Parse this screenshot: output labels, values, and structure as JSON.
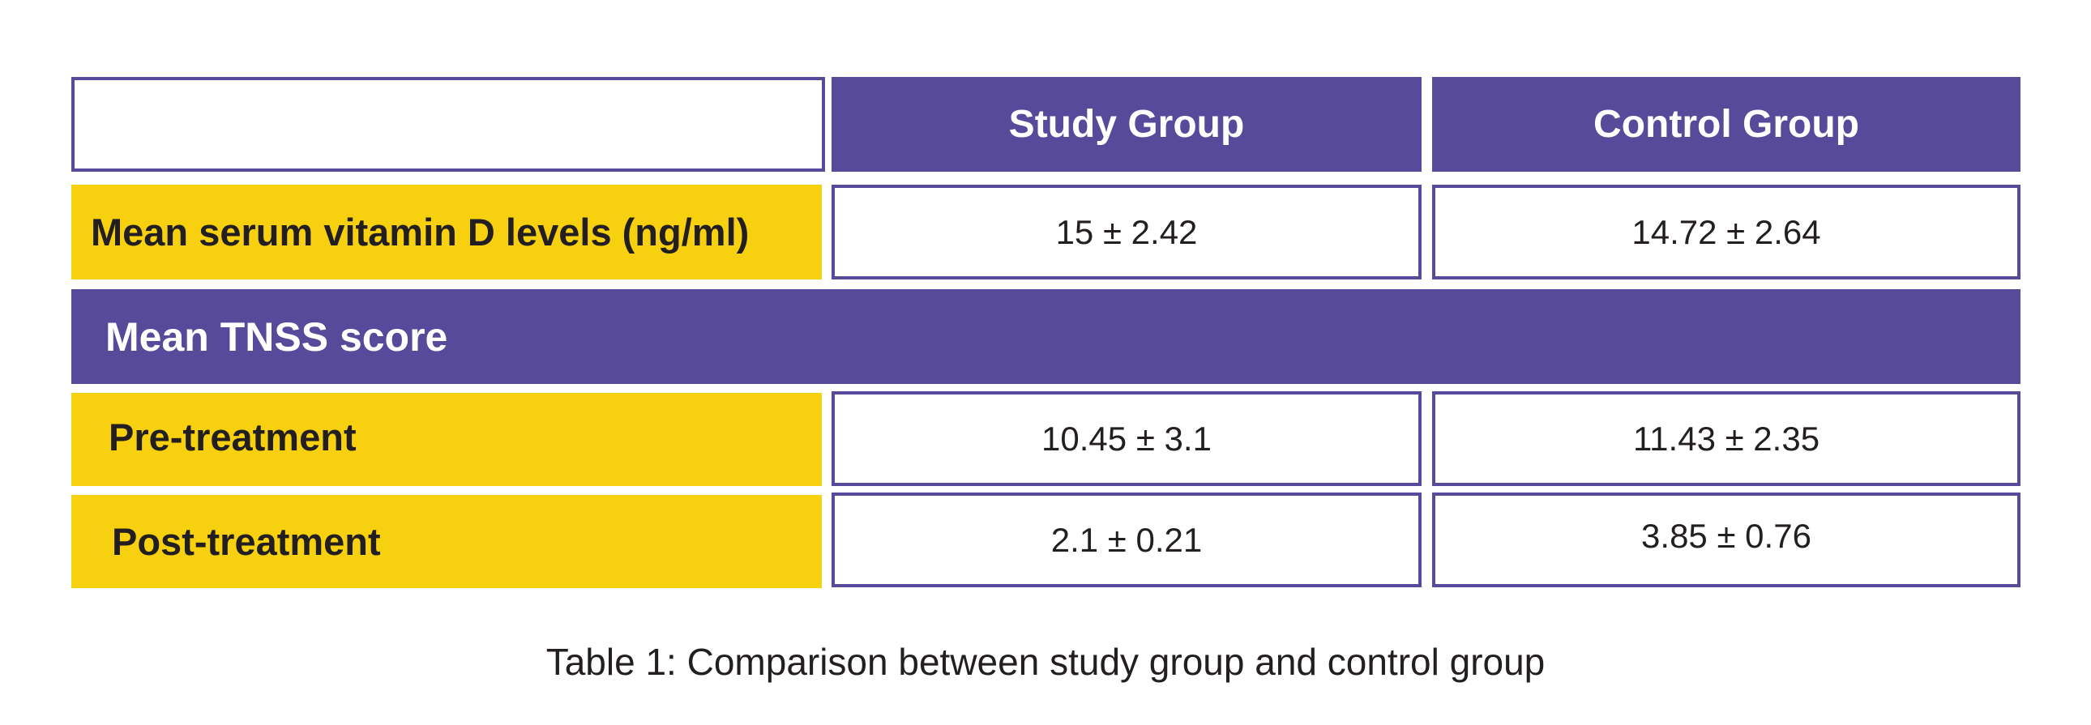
{
  "table": {
    "header": {
      "corner": "",
      "col1": "Study Group",
      "col2": "Control Group"
    },
    "vitamin_row": {
      "label": "Mean serum vitamin D levels (ng/ml)",
      "study": "15 ± 2.42",
      "control": "14.72 ± 2.64"
    },
    "section": {
      "label": "Mean TNSS score"
    },
    "pre_row": {
      "label": "Pre-treatment",
      "study": "10.45 ± 3.1",
      "control": "11.43 ± 2.35"
    },
    "post_row": {
      "label": "Post-treatment",
      "study": "2.1 ± 0.21",
      "control": "3.85 ± 0.76"
    }
  },
  "caption": "Table 1: Comparison between study group and control group",
  "colors": {
    "purple": "#584a9a",
    "yellow": "#f7d010",
    "text": "#231f20"
  }
}
